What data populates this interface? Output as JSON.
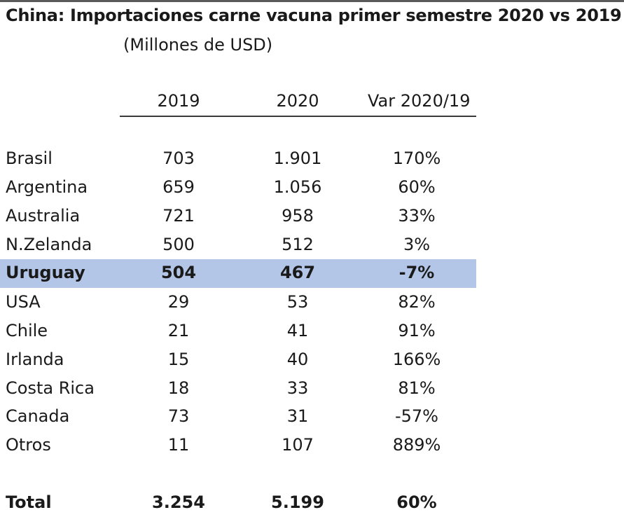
{
  "title": "China: Importaciones carne vacuna primer semestre 2020 vs 2019",
  "subtitle": "(Millones de USD)",
  "headers": [
    "2019",
    "2020",
    "Var 2020/19"
  ],
  "colors": {
    "highlight": "#b4c6e7"
  },
  "rows": [
    {
      "country": "Brasil",
      "y2019": "703",
      "y2020": "1.901",
      "var": "170%"
    },
    {
      "country": "Argentina",
      "y2019": "659",
      "y2020": "1.056",
      "var": "60%"
    },
    {
      "country": "Australia",
      "y2019": "721",
      "y2020": "958",
      "var": "33%"
    },
    {
      "country": "N.Zelanda",
      "y2019": "500",
      "y2020": "512",
      "var": "3%"
    },
    {
      "country": "Uruguay",
      "y2019": "504",
      "y2020": "467",
      "var": "-7%"
    },
    {
      "country": "USA",
      "y2019": "29",
      "y2020": "53",
      "var": "82%"
    },
    {
      "country": "Chile",
      "y2019": "21",
      "y2020": "41",
      "var": "91%"
    },
    {
      "country": "Irlanda",
      "y2019": "15",
      "y2020": "40",
      "var": "166%"
    },
    {
      "country": "Costa Rica",
      "y2019": "18",
      "y2020": "33",
      "var": "81%"
    },
    {
      "country": "Canada",
      "y2019": "73",
      "y2020": "31",
      "var": "-57%"
    },
    {
      "country": "Otros",
      "y2019": "11",
      "y2020": "107",
      "var": "889%"
    }
  ],
  "total": {
    "country": "Total",
    "y2019": "3.254",
    "y2020": "5.199",
    "var": "60%"
  }
}
